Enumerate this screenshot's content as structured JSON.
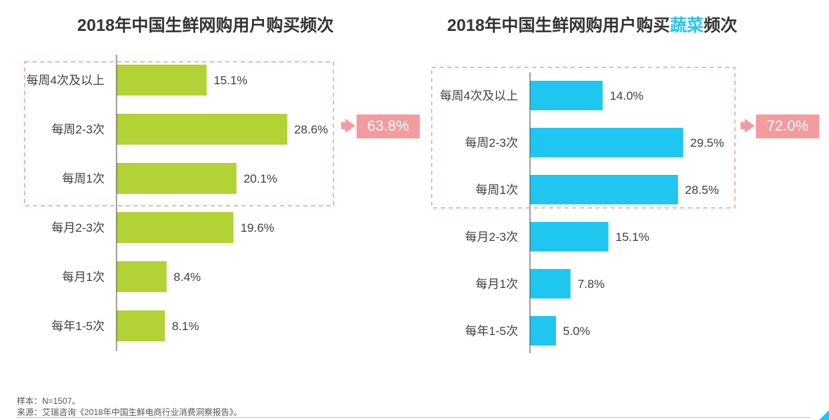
{
  "chart_data": [
    {
      "type": "bar",
      "orientation": "horizontal",
      "title": "2018年中国生鲜网购用户购买频次",
      "categories": [
        "每周4次及以上",
        "每周2-3次",
        "每周1次",
        "每月2-3次",
        "每月1次",
        "每年1-5次"
      ],
      "values": [
        15.1,
        28.6,
        20.1,
        19.6,
        8.4,
        8.1
      ],
      "value_labels": [
        "15.1%",
        "28.6%",
        "20.1%",
        "19.6%",
        "8.4%",
        "8.1%"
      ],
      "color": "#b2d235",
      "annotation": {
        "label": "63.8%",
        "covers": [
          "每周4次及以上",
          "每周2-3次",
          "每周1次"
        ]
      }
    },
    {
      "type": "bar",
      "orientation": "horizontal",
      "title": "2018年中国生鲜网购用户购买蔬菜频次",
      "title_prefix": "2018年中国生鲜网购用户购买",
      "title_highlight": "蔬菜",
      "title_suffix": "频次",
      "categories": [
        "每周4次及以上",
        "每周2-3次",
        "每周1次",
        "每月2-3次",
        "每月1次",
        "每年1-5次"
      ],
      "values": [
        14.0,
        29.5,
        28.5,
        15.1,
        7.8,
        5.0
      ],
      "value_labels": [
        "14.0%",
        "29.5%",
        "28.5%",
        "15.1%",
        "7.8%",
        "5.0%"
      ],
      "color": "#1fc6f0",
      "annotation": {
        "label": "72.0%",
        "covers": [
          "每周4次及以上",
          "每周2-3次",
          "每周1次"
        ]
      }
    }
  ],
  "footer": {
    "sample": "样本：N=1507。",
    "source": "来源：艾瑞咨询《2018年中国生鲜电商行业消费洞察报告》。"
  },
  "colors": {
    "highlight_box": "#f29c9f",
    "accent_blue": "#1fc6f0"
  }
}
